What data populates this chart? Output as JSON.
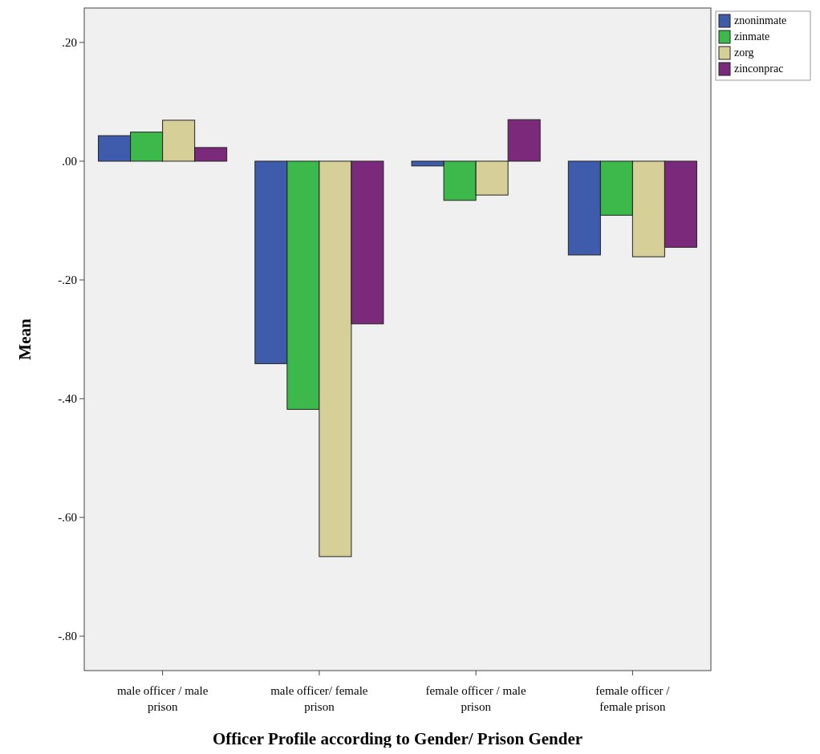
{
  "chart_data": {
    "type": "bar",
    "xlabel": "Officer Profile according to Gender/ Prison Gender",
    "ylabel": "Mean",
    "categories": [
      "male officer / male prison",
      "male officer/ female prison",
      "female officer / male prison",
      "female officer / female prison"
    ],
    "series": [
      {
        "name": "znoninmate",
        "color": "#3f5bab",
        "values": [
          0.043,
          -0.341,
          -0.008,
          -0.158
        ]
      },
      {
        "name": "zinmate",
        "color": "#3cb94a",
        "values": [
          0.049,
          -0.418,
          -0.066,
          -0.091
        ]
      },
      {
        "name": "zorg",
        "color": "#d6cf97",
        "values": [
          0.069,
          -0.666,
          -0.057,
          -0.161
        ]
      },
      {
        "name": "zinconprac",
        "color": "#7b2a7b",
        "values": [
          0.023,
          -0.274,
          0.07,
          -0.145
        ]
      }
    ],
    "ylim": [
      -0.858,
      0.258
    ],
    "yticks": [
      {
        "value": -0.8,
        "label": "-.80"
      },
      {
        "value": -0.6,
        "label": "-.60"
      },
      {
        "value": -0.4,
        "label": "-.40"
      },
      {
        "value": -0.2,
        "label": "-.20"
      },
      {
        "value": 0,
        "label": ".00"
      },
      {
        "value": 0.2,
        "label": ".20"
      }
    ],
    "grid": false,
    "legend": "top right"
  }
}
